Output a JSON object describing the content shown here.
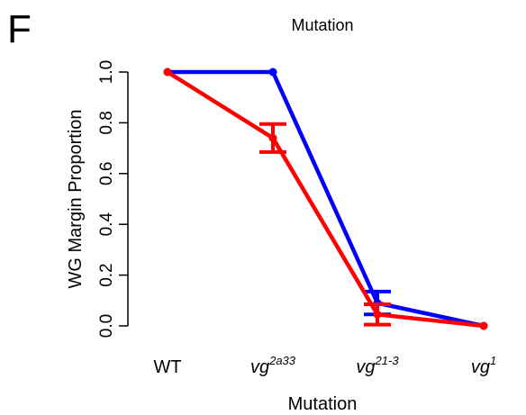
{
  "panel_label": "F",
  "chart_data": {
    "type": "line",
    "title": "Mutation",
    "xlabel": "Mutation",
    "ylabel": "WG Margin Proportion",
    "ylim": [
      0,
      1
    ],
    "yticks": [
      0.0,
      0.2,
      0.4,
      0.6,
      0.8,
      1.0
    ],
    "ytick_labels": [
      "0.0",
      "0.2",
      "0.4",
      "0.6",
      "0.8",
      "1.0"
    ],
    "categories": [
      {
        "base": "WT",
        "sup": ""
      },
      {
        "base": "vg",
        "sup": "2a33"
      },
      {
        "base": "vg",
        "sup": "21-3"
      },
      {
        "base": "vg",
        "sup": "1"
      }
    ],
    "legend": "none",
    "grid": false,
    "series": [
      {
        "color": "#0000ff",
        "values": [
          1.0,
          1.0,
          0.09,
          0.0
        ],
        "err_low": [
          null,
          null,
          0.045,
          null
        ],
        "err_high": [
          null,
          null,
          0.135,
          null
        ]
      },
      {
        "color": "#ff0000",
        "values": [
          1.0,
          0.74,
          0.045,
          0.0
        ],
        "err_low": [
          null,
          0.685,
          0.005,
          null
        ],
        "err_high": [
          null,
          0.795,
          0.085,
          null
        ]
      }
    ]
  }
}
